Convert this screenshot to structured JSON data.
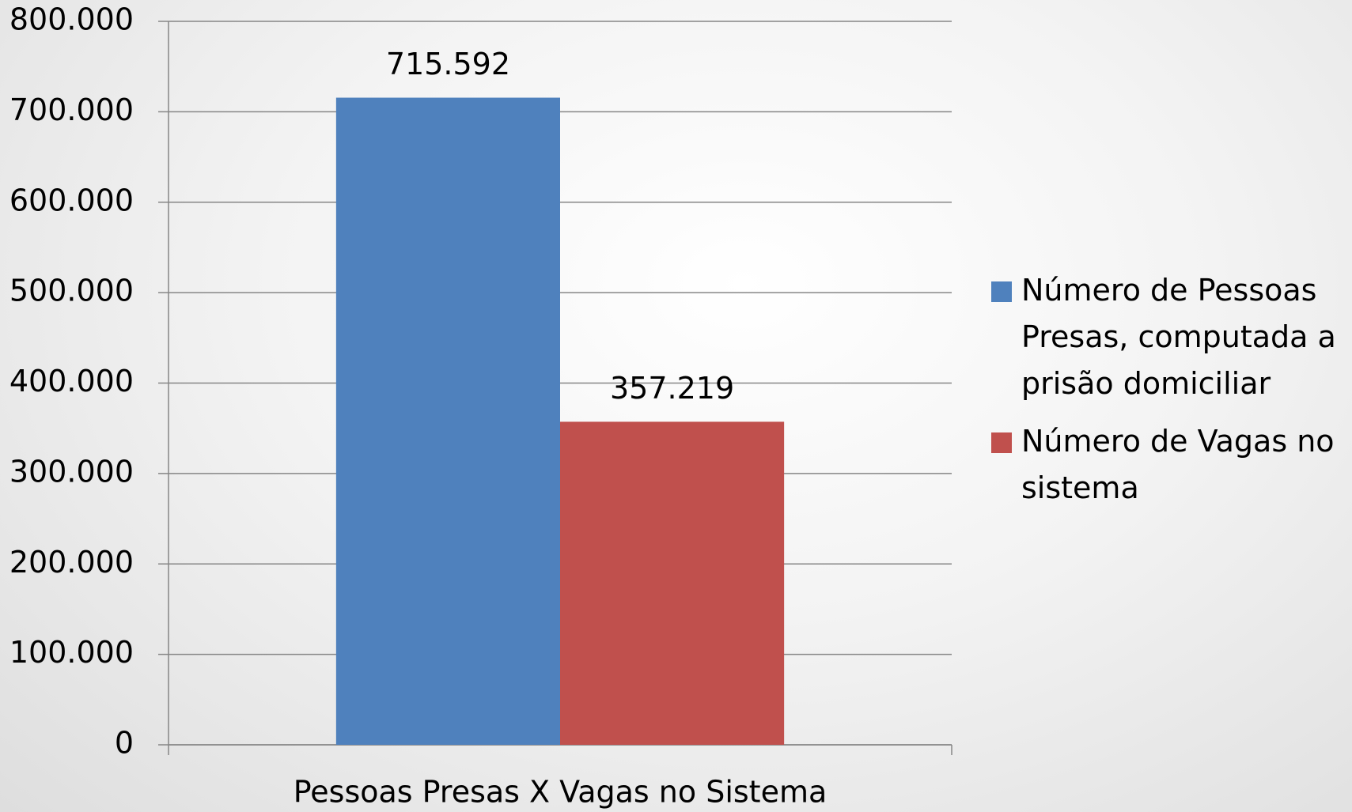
{
  "chart_data": {
    "type": "bar",
    "categories": [
      "Pessoas Presas X Vagas no Sistema"
    ],
    "series": [
      {
        "name": "Número de Pessoas Presas, computada a prisão domiciliar",
        "color": "#4f81bd",
        "values": [
          715592
        ],
        "value_labels": [
          "715.592"
        ]
      },
      {
        "name": "Número de Vagas no sistema",
        "color": "#c0504d",
        "values": [
          357219
        ],
        "value_labels": [
          "357.219"
        ]
      }
    ],
    "ylim": [
      0,
      800000
    ],
    "yticks": [
      0,
      {
        "value": 100000,
        "label": "100.000"
      },
      {
        "value": 200000,
        "label": "200.000"
      },
      {
        "value": 300000,
        "label": "300.000"
      },
      {
        "value": 400000,
        "label": "400.000"
      },
      {
        "value": 500000,
        "label": "500.000"
      },
      {
        "value": 600000,
        "label": "600.000"
      },
      {
        "value": 700000,
        "label": "700.000"
      },
      {
        "value": 800000,
        "label": "800.000"
      }
    ],
    "grid": true,
    "legend": "right"
  }
}
